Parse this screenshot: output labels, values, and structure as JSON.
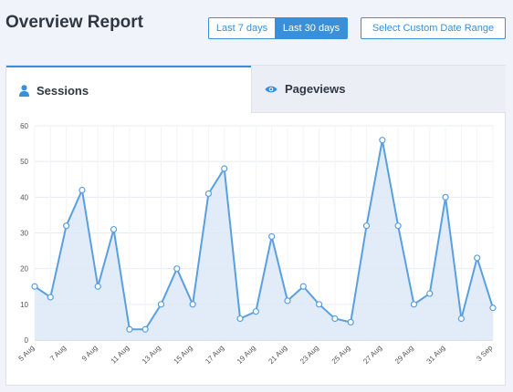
{
  "header": {
    "title": "Overview Report"
  },
  "date_range": {
    "last7_label": "Last 7 days",
    "last30_label": "Last 30 days",
    "custom_label": "Select Custom Date Range",
    "active": "last30"
  },
  "tabs": [
    {
      "label": "Sessions",
      "icon": "user-icon",
      "active": true
    },
    {
      "label": "Pageviews",
      "icon": "eye-icon",
      "active": false
    }
  ],
  "colors": {
    "accent": "#3a8fd9",
    "area_fill": "#dce9f7",
    "line": "#5a9fe0"
  },
  "chart_data": {
    "type": "area",
    "x": [
      "5 Aug",
      "6 Aug",
      "7 Aug",
      "8 Aug",
      "9 Aug",
      "10 Aug",
      "11 Aug",
      "12 Aug",
      "13 Aug",
      "14 Aug",
      "15 Aug",
      "16 Aug",
      "17 Aug",
      "18 Aug",
      "19 Aug",
      "20 Aug",
      "21 Aug",
      "22 Aug",
      "23 Aug",
      "24 Aug",
      "25 Aug",
      "26 Aug",
      "27 Aug",
      "28 Aug",
      "29 Aug",
      "30 Aug",
      "31 Aug",
      "1 Sep",
      "2 Sep",
      "3 Sep"
    ],
    "tick_labels": [
      "5 Aug",
      "7 Aug",
      "9 Aug",
      "11 Aug",
      "13 Aug",
      "15 Aug",
      "17 Aug",
      "19 Aug",
      "21 Aug",
      "23 Aug",
      "25 Aug",
      "27 Aug",
      "29 Aug",
      "31 Aug",
      "3 Sep"
    ],
    "series": [
      {
        "values": [
          15,
          12,
          32,
          42,
          15,
          31,
          3,
          3,
          10,
          20,
          10,
          41,
          48,
          6,
          8,
          29,
          11,
          15,
          10,
          6,
          5,
          32,
          56,
          32,
          10,
          13,
          40,
          6,
          23,
          9
        ]
      }
    ],
    "y_ticks": [
      0,
      10,
      20,
      30,
      40,
      50,
      60
    ],
    "ylim": [
      0,
      60
    ],
    "grid": true
  }
}
